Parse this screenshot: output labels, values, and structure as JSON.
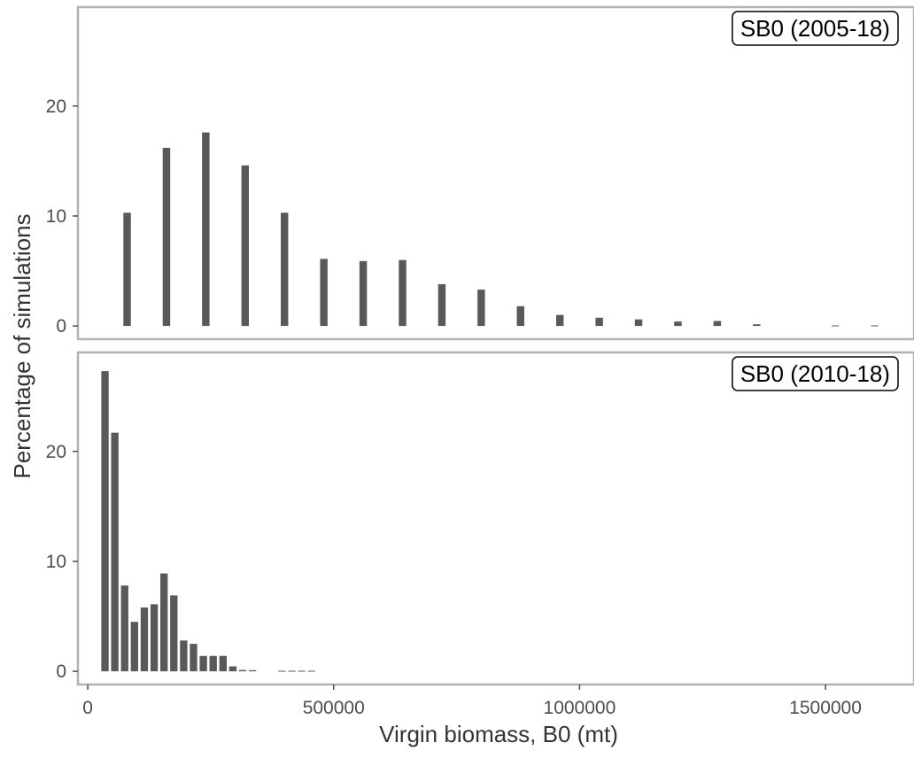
{
  "colors": {
    "bar": "#595959",
    "panel_border": "#b3b3b3",
    "tick": "#4d4d4d",
    "label_border": "#000000"
  },
  "chart_data": {
    "type": "bar",
    "xlabel": "Virgin biomass, B0 (mt)",
    "ylabel": "Percentage of simulations",
    "xlim": [
      -20000,
      1680000
    ],
    "x_ticks": [
      0,
      500000,
      1000000,
      1500000
    ],
    "x_tick_labels": [
      "0",
      "500000",
      "1000000",
      "1500000"
    ],
    "shared_x_axis": true,
    "grid": false,
    "panels": [
      {
        "label": "SB0 (2005-18)",
        "label_position": "top-right",
        "ylim": [
          -1.2,
          29
        ],
        "y_ticks": [
          0,
          10,
          20
        ],
        "y_tick_labels": [
          "0",
          "10",
          "20"
        ],
        "bin_width": 80000,
        "bar_width_fraction": 0.19,
        "x": [
          80000,
          160000,
          240000,
          320000,
          400000,
          480000,
          560000,
          640000,
          720000,
          800000,
          880000,
          960000,
          1040000,
          1120000,
          1200000,
          1280000,
          1360000,
          1440000,
          1520000,
          1600000
        ],
        "values": [
          10.3,
          16.2,
          17.6,
          14.6,
          10.3,
          6.1,
          5.9,
          6.0,
          3.8,
          3.3,
          1.8,
          1.0,
          0.75,
          0.6,
          0.4,
          0.45,
          0.15,
          0,
          0.05,
          0.05
        ]
      },
      {
        "label": "SB0 (2010-18)",
        "label_position": "top-right",
        "ylim": [
          -1.2,
          29
        ],
        "y_ticks": [
          0,
          10,
          20
        ],
        "y_tick_labels": [
          "0",
          "10",
          "20"
        ],
        "bin_width": 20000,
        "bar_width_fraction": 0.75,
        "x": [
          35000,
          55000,
          75000,
          95000,
          115000,
          135000,
          155000,
          175000,
          195000,
          215000,
          235000,
          255000,
          275000,
          295000,
          315000,
          335000,
          355000,
          375000,
          395000,
          415000,
          435000,
          455000
        ],
        "values": [
          27.3,
          21.7,
          7.8,
          4.5,
          5.8,
          6.1,
          8.9,
          6.9,
          2.8,
          2.5,
          1.4,
          1.4,
          1.4,
          0.45,
          0.12,
          0.1,
          0,
          0,
          0.05,
          0.05,
          0.05,
          0.05
        ]
      }
    ]
  }
}
